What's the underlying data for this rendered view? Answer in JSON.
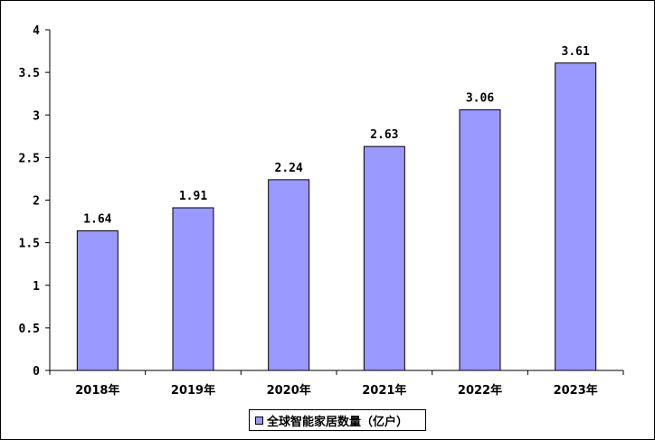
{
  "chart_data": {
    "type": "bar",
    "categories": [
      "2018年",
      "2019年",
      "2020年",
      "2021年",
      "2022年",
      "2023年"
    ],
    "series": [
      {
        "name": "全球智能家居数量（亿户）",
        "values": [
          1.64,
          1.91,
          2.24,
          2.63,
          3.06,
          3.61
        ]
      }
    ],
    "data_labels": [
      "1.64",
      "1.91",
      "2.24",
      "2.63",
      "3.06",
      "3.61"
    ],
    "y_ticks": [
      "0",
      "0.5",
      "1",
      "1.5",
      "2",
      "2.5",
      "3",
      "3.5",
      "4"
    ],
    "ylim": [
      0,
      4
    ],
    "grid": false,
    "legend_position": "bottom",
    "bar_color": "#9999ff",
    "edge_color": "#000000"
  }
}
